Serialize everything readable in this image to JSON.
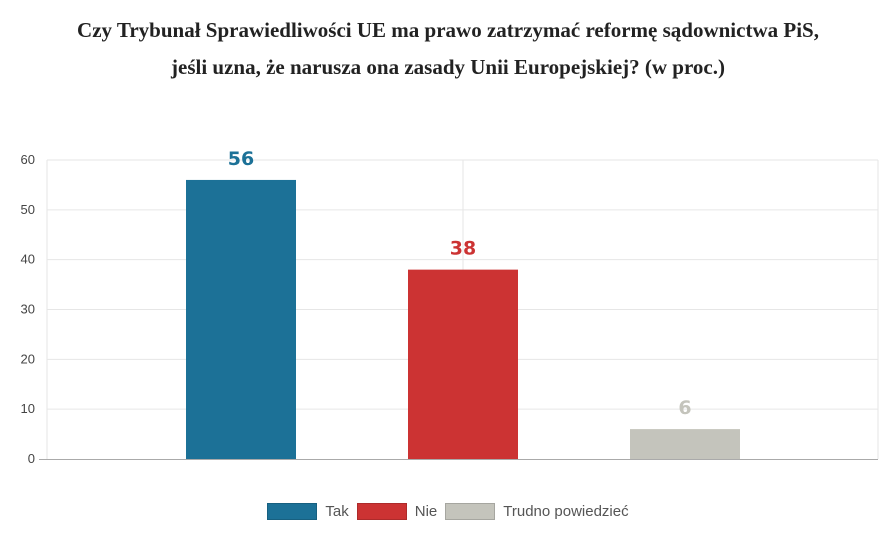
{
  "title_lines": [
    "Czy Trybunał Sprawiedliwości UE ma prawo zatrzymać reformę sądownictwa PiS,",
    "jeśli uzna, że narusza ona zasady Unii Europejskiej? (w proc.)"
  ],
  "chart_data": {
    "type": "bar",
    "title": "Czy Trybunał Sprawiedliwości UE ma prawo zatrzymać reformę sądownictwa PiS, jeśli uzna, że narusza ona zasady Unii Europejskiej? (w proc.)",
    "categories": [
      "Tak",
      "Nie",
      "Trudno powiedzieć"
    ],
    "values": [
      56,
      38,
      6
    ],
    "colors": [
      "#1c7197",
      "#cc3333",
      "#c4c4bc"
    ],
    "label_colors": [
      "#1c7197",
      "#cc3333",
      "#c4c4bc"
    ],
    "ylim": [
      0,
      60
    ],
    "yticks": [
      0,
      10,
      20,
      30,
      40,
      50,
      60
    ],
    "xlabel": "",
    "ylabel": "",
    "grid": true,
    "legend_position": "bottom"
  }
}
